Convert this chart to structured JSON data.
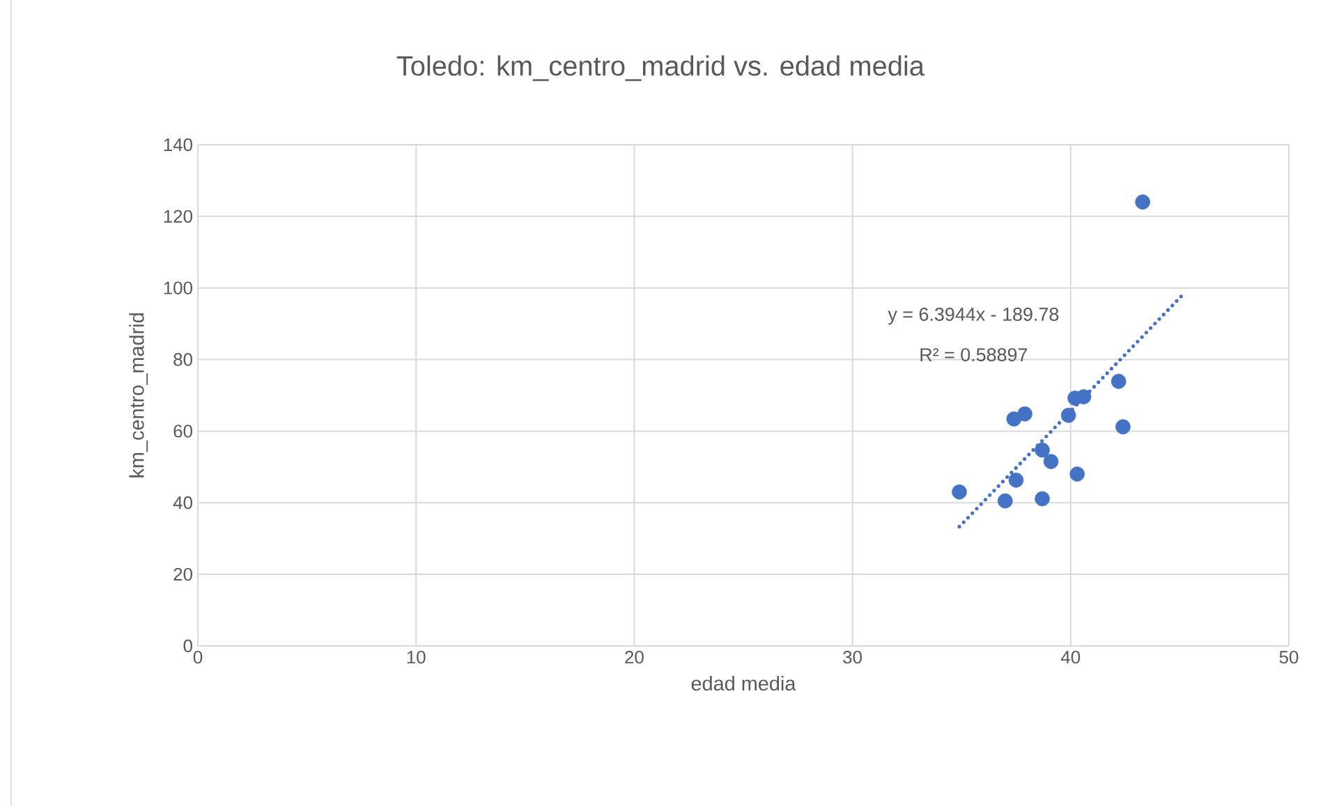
{
  "chart_data": {
    "type": "scatter",
    "title": "Toledo: km_centro_madrid vs. edad media",
    "xlabel": "edad media",
    "ylabel": "km_centro_madrid",
    "annotations": [
      "y = 6.3944x - 189.78",
      "R² = 0.58897"
    ],
    "series": [
      {
        "color": "#4472c4",
        "marker": "circle",
        "x": [
          43.3,
          42.2,
          42.4,
          40.6,
          40.2,
          39.9,
          37.9,
          37.4,
          38.7,
          39.1,
          40.3,
          37.5,
          34.9,
          37.0,
          38.7
        ],
        "values": [
          124,
          73.9,
          61.2,
          69.6,
          69.2,
          64.4,
          64.8,
          63.4,
          54.7,
          51.5,
          48.0,
          46.3,
          43.0,
          40.5,
          41.1
        ]
      },
      {
        "type": "line",
        "color": "#4472c4",
        "line_style": "dotted",
        "marker": "none",
        "x": [
          34.9,
          45.2
        ],
        "values": [
          33.3,
          98.5
        ]
      }
    ],
    "xlim": [
      0,
      50
    ],
    "ylim": [
      0,
      140
    ],
    "xticks": [
      0,
      10,
      20,
      30,
      40,
      50
    ],
    "yticks": [
      0,
      20,
      40,
      60,
      80,
      100,
      120,
      140
    ],
    "grid": true
  }
}
